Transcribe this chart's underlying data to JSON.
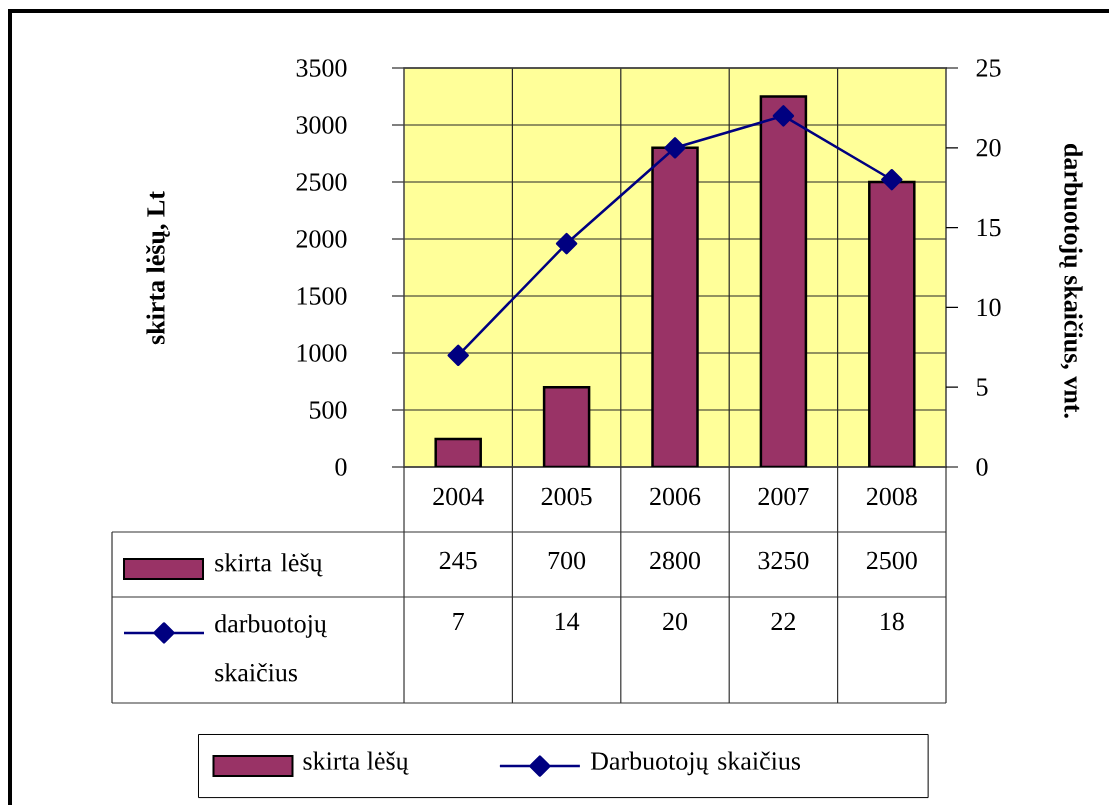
{
  "chart_data": {
    "type": "bar",
    "categories": [
      "2004",
      "2005",
      "2006",
      "2007",
      "2008"
    ],
    "ylabel": "skirta lėšų, Lt",
    "y2label": "darbuotojų skaičius, vnt.",
    "series": [
      {
        "name": "skirta lėšų",
        "color": "#993366",
        "values": [
          245,
          700,
          2800,
          3250,
          2500
        ]
      },
      {
        "name": "Darbuotojų skaičius",
        "type": "line",
        "axis": "y2",
        "color": "#000080",
        "marker": "diamond",
        "line_style": "solid",
        "values": [
          7,
          14,
          20,
          22,
          18
        ]
      }
    ],
    "ylim": [
      0,
      3500
    ],
    "yticks": [
      0,
      500,
      1000,
      1500,
      2000,
      2500,
      3000,
      3500
    ],
    "y2lim": [
      0,
      25
    ],
    "y2ticks": [
      0,
      5,
      10,
      15,
      20,
      25
    ],
    "grid": true,
    "legend": "bottom",
    "data_labels": true,
    "annotations": [
      "skirta lėšų",
      "darbuotojų skaičius"
    ]
  }
}
